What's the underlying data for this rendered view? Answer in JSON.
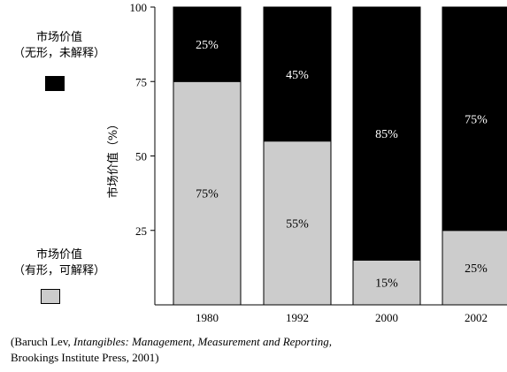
{
  "chart_data": {
    "type": "bar",
    "stacked": true,
    "categories": [
      "1980",
      "1992",
      "2000",
      "2002"
    ],
    "series": [
      {
        "name": "市场价值（有形，可解释）",
        "values": [
          75,
          55,
          15,
          25
        ],
        "labels": [
          "75%",
          "55%",
          "15%",
          "25%"
        ],
        "color": "#cccccc"
      },
      {
        "name": "市场价值（无形，未解释）",
        "values": [
          25,
          45,
          85,
          75
        ],
        "labels": [
          "25%",
          "45%",
          "85%",
          "75%"
        ],
        "color": "#000000"
      }
    ],
    "ylabel": "市场价值（%）",
    "yticks": [
      25,
      50,
      75,
      100
    ],
    "ylim": [
      0,
      100
    ],
    "grid": false
  },
  "legend": {
    "intangible": {
      "line1": "市场价值",
      "line2": "（无形，未解释）",
      "color": "#000000"
    },
    "tangible": {
      "line1": "市场价值",
      "line2": "（有形，可解释）",
      "color": "#cccccc"
    }
  },
  "source": {
    "open": "(Baruch Lev, ",
    "title": "Intangibles: Management, Measurement and Reporting,",
    "line2": "Brookings Institute Press, 2001)"
  }
}
